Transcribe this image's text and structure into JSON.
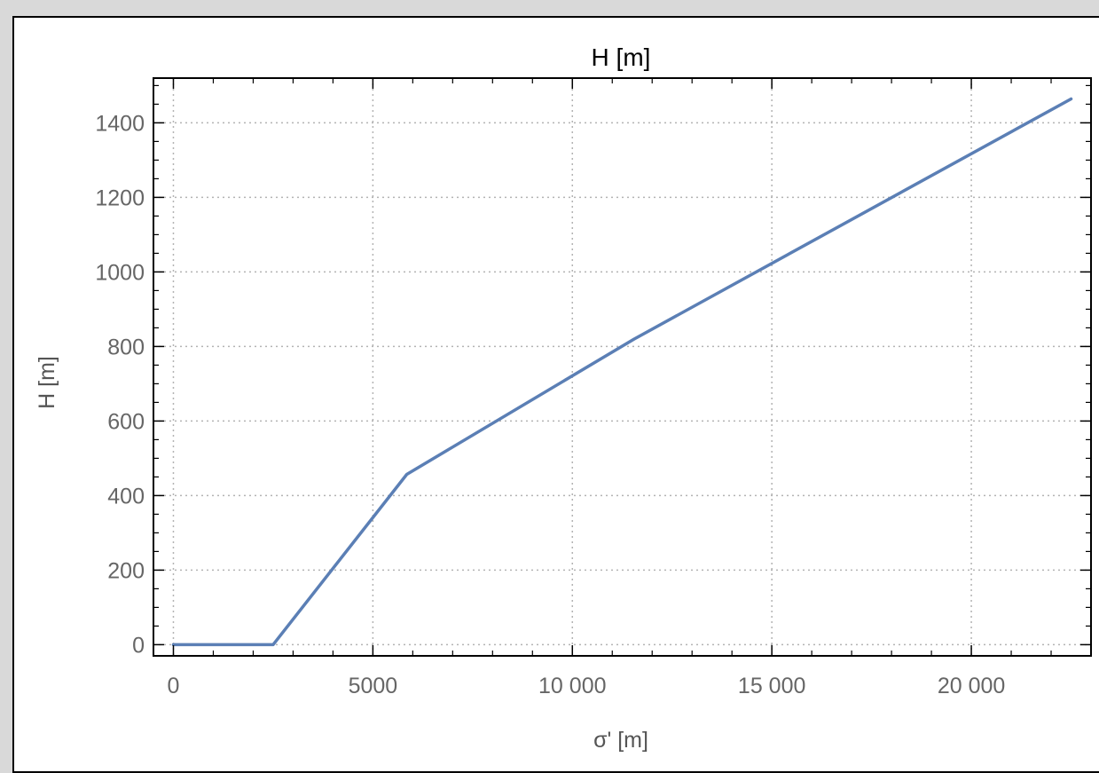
{
  "chart_data": {
    "type": "line",
    "title": "H [m]",
    "xlabel": "σ' [m]",
    "ylabel": "H [m]",
    "xlim": [
      -500,
      23000
    ],
    "ylim": [
      -30,
      1520
    ],
    "xticks": [
      0,
      5000,
      10000,
      15000,
      20000
    ],
    "xtick_labels": [
      "0",
      "5000",
      "10 000",
      "15 000",
      "20 000"
    ],
    "yticks": [
      0,
      200,
      400,
      600,
      800,
      1000,
      1200,
      1400
    ],
    "ytick_labels": [
      "0",
      "200",
      "400",
      "600",
      "800",
      "1000",
      "1200",
      "1400"
    ],
    "grid": true,
    "legend": "none",
    "series": [
      {
        "color": "#5b7fb5",
        "x": [
          0,
          2500,
          5850,
          11550,
          22500
        ],
        "y": [
          0,
          0,
          457,
          820,
          1464
        ]
      }
    ]
  }
}
